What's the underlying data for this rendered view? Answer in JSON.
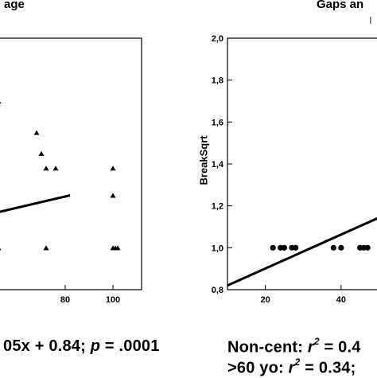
{
  "left_panel": {
    "title_fragment": "age",
    "caption_parts": {
      "pre": "05x + 0.84;  ",
      "p_symbol": "p",
      "post": " = .0001"
    }
  },
  "right_panel": {
    "title_fragment": "Gaps an",
    "corner_fragment": "I",
    "caption_line1_parts": {
      "pre": "Non-cent: ",
      "r_symbol": "r",
      "exp": "2",
      "post": " = 0.4"
    },
    "caption_line2_parts": {
      "pre": ">60 yo: ",
      "r_symbol": "r",
      "exp": "2",
      "post": " = 0.34;"
    }
  },
  "chart_data": [
    {
      "type": "scatter",
      "title": "age",
      "xlabel": "",
      "ylabel": "",
      "xlim": [
        52,
        112
      ],
      "ylim": [
        0.8,
        2.0
      ],
      "xticks": [
        80,
        100
      ],
      "marker": "triangle",
      "series": [
        {
          "x": [
            52,
            52,
            68,
            70,
            72,
            72,
            76,
            100,
            100,
            100,
            101,
            102
          ],
          "y": [
            1.7,
            1.0,
            1.55,
            1.45,
            1.38,
            1.0,
            1.38,
            1.38,
            1.25,
            1.0,
            1.0,
            1.0
          ]
        }
      ],
      "fit_line": {
        "x": [
          52,
          82
        ],
        "y": [
          1.17,
          1.25
        ]
      }
    },
    {
      "type": "scatter",
      "title": "Gaps an",
      "xlabel": "",
      "ylabel": "BreakSqrt",
      "xlim": [
        10,
        52
      ],
      "ylim": [
        0.8,
        2.0
      ],
      "xticks": [
        20,
        40
      ],
      "yticks": [
        0.8,
        1.0,
        1.2,
        1.4,
        1.6,
        1.8,
        2.0
      ],
      "ytick_labels": [
        "0,8",
        "1,0",
        "1,2",
        "1,4",
        "1,6",
        "1,8",
        "2,0"
      ],
      "marker": "circle",
      "series": [
        {
          "x": [
            22,
            24,
            25,
            27,
            28,
            38,
            40,
            45,
            46,
            47
          ],
          "y": [
            1.0,
            1.0,
            1.0,
            1.0,
            1.0,
            1.0,
            1.0,
            1.0,
            1.0,
            1.0
          ]
        }
      ],
      "fit_line": {
        "x": [
          10,
          52
        ],
        "y": [
          0.82,
          1.16
        ]
      }
    }
  ]
}
